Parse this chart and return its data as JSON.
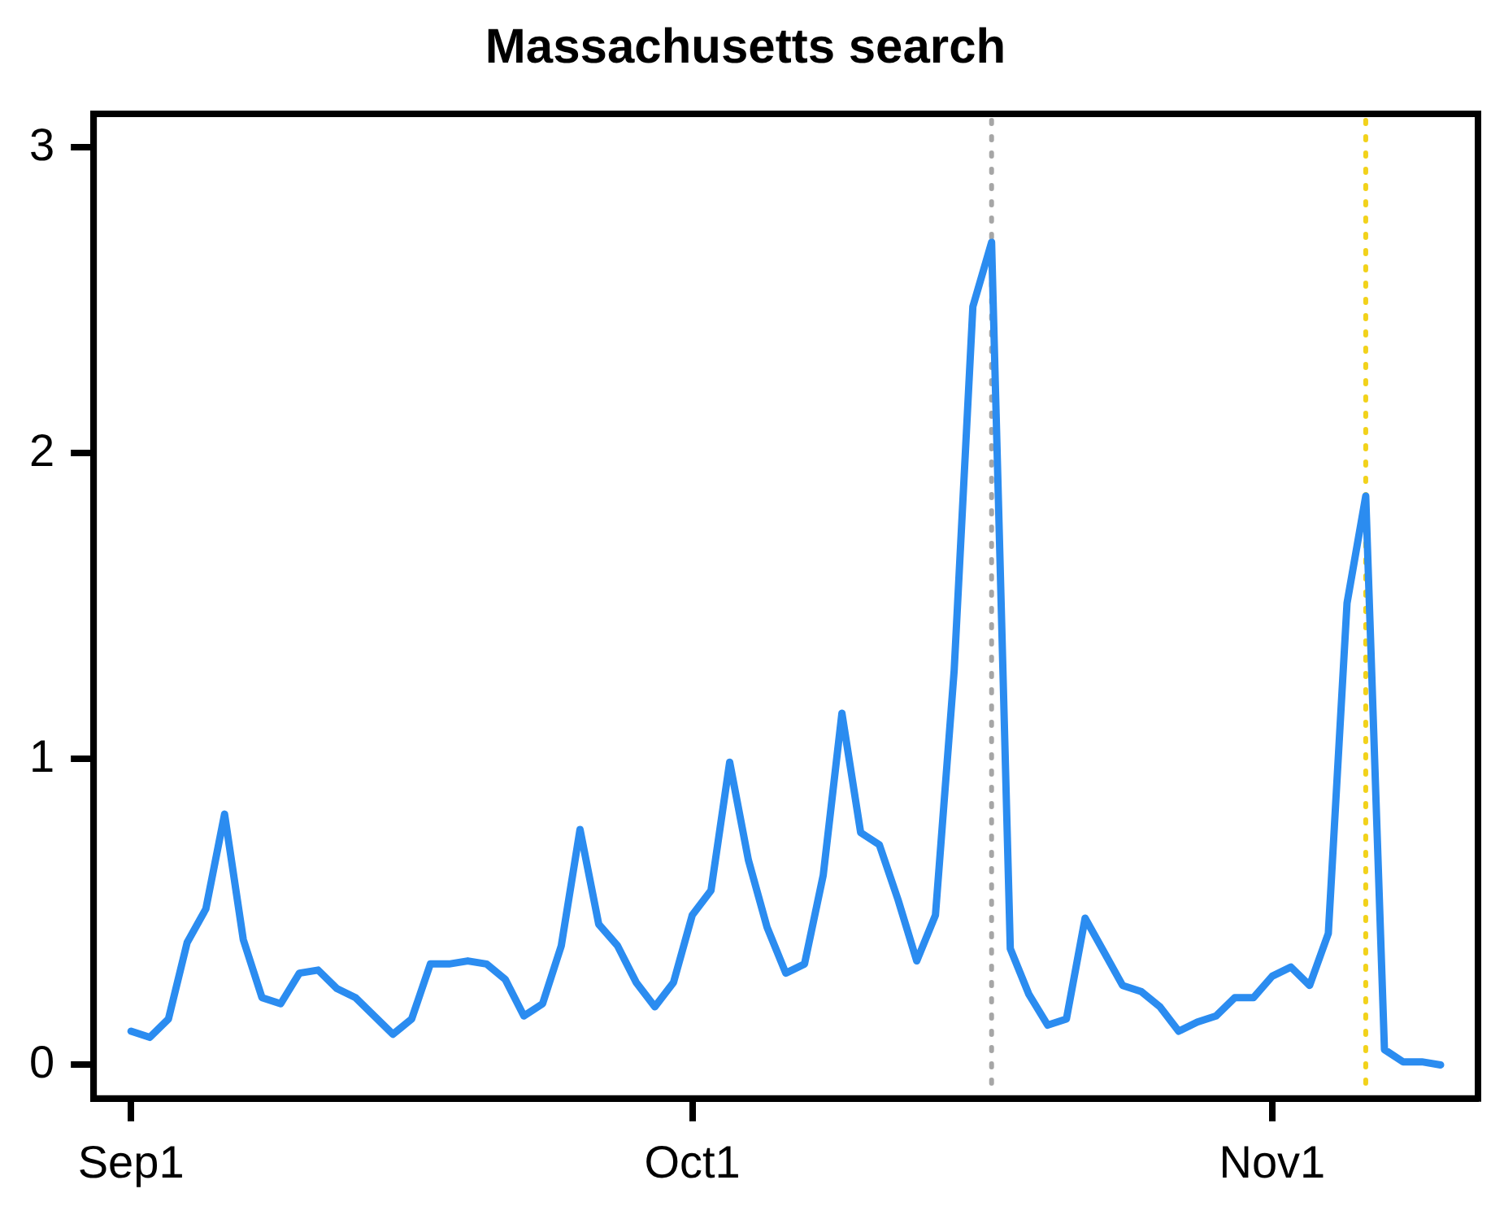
{
  "chart_data": {
    "type": "line",
    "title": "Massachusetts search",
    "x": [
      "--09-01",
      "--09-02",
      "--09-03",
      "--09-04",
      "--09-05",
      "--09-06",
      "--09-07",
      "--09-08",
      "--09-09",
      "--09-10",
      "--09-11",
      "--09-12",
      "--09-13",
      "--09-14",
      "--09-15",
      "--09-16",
      "--09-17",
      "--09-18",
      "--09-19",
      "--09-20",
      "--09-21",
      "--09-22",
      "--09-23",
      "--09-24",
      "--09-25",
      "--09-26",
      "--09-27",
      "--09-28",
      "--09-29",
      "--09-30",
      "--10-01",
      "--10-02",
      "--10-03",
      "--10-04",
      "--10-05",
      "--10-06",
      "--10-07",
      "--10-08",
      "--10-09",
      "--10-10",
      "--10-11",
      "--10-12",
      "--10-13",
      "--10-14",
      "--10-15",
      "--10-16",
      "--10-17",
      "--10-18",
      "--10-19",
      "--10-20",
      "--10-21",
      "--10-22",
      "--10-23",
      "--10-24",
      "--10-25",
      "--10-26",
      "--10-27",
      "--10-28",
      "--10-29",
      "--10-30",
      "--10-31",
      "--11-01",
      "--11-02",
      "--11-03",
      "--11-04",
      "--11-05",
      "--11-06",
      "--11-07",
      "--11-08",
      "--11-09",
      "--11-10"
    ],
    "series": [
      {
        "color": "#2b8cf0",
        "values": [
          0.11,
          0.09,
          0.15,
          0.4,
          0.51,
          0.82,
          0.41,
          0.22,
          0.2,
          0.3,
          0.31,
          0.25,
          0.22,
          0.16,
          0.1,
          0.15,
          0.33,
          0.33,
          0.34,
          0.33,
          0.28,
          0.16,
          0.2,
          0.39,
          0.77,
          0.46,
          0.39,
          0.27,
          0.19,
          0.27,
          0.49,
          0.57,
          0.99,
          0.67,
          0.45,
          0.3,
          0.33,
          0.62,
          1.15,
          0.76,
          0.72,
          0.54,
          0.34,
          0.49,
          1.29,
          2.48,
          2.69,
          0.38,
          0.23,
          0.13,
          0.15,
          0.48,
          0.37,
          0.26,
          0.24,
          0.19,
          0.11,
          0.14,
          0.16,
          0.22,
          0.22,
          0.29,
          0.32,
          0.26,
          0.43,
          1.51,
          1.86,
          0.05,
          0.01,
          0.01,
          0.0
        ]
      }
    ],
    "xlim": [
      "--08-30",
      "--11-12"
    ],
    "xticks": [
      {
        "value": "--09-01",
        "label": "Sep1"
      },
      {
        "value": "--10-01",
        "label": "Oct1"
      },
      {
        "value": "--11-01",
        "label": "Nov1"
      }
    ],
    "ylim": [
      -0.11,
      3.11
    ],
    "yticks": [
      0,
      1,
      2,
      3
    ],
    "ref_lines": [
      {
        "axis": "x",
        "value": "--10-17",
        "color": "#a6a6a6",
        "line_style": "dotted"
      },
      {
        "axis": "x",
        "value": "--11-06",
        "color": "#f2d21b",
        "line_style": "dotted"
      }
    ],
    "grid": false,
    "legend": false,
    "marker": "none",
    "line_style": "solid"
  }
}
